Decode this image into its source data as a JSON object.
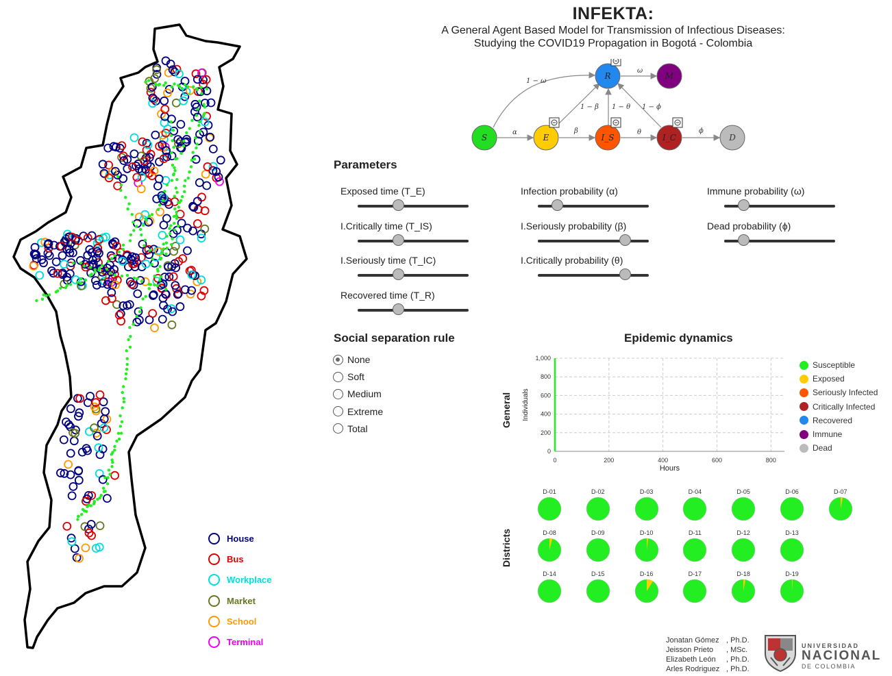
{
  "header": {
    "title": "INFEKTA:",
    "subtitle_line1": "A General Agent Based Model for Transmission of Infectious Diseases:",
    "subtitle_line2": "Studying the COVID19 Propagation in Bogotá - Colombia"
  },
  "model_diagram": {
    "nodes": [
      {
        "label": "S",
        "color": "#22dd22"
      },
      {
        "label": "E",
        "color": "#ffcc00"
      },
      {
        "label": "I_S",
        "color": "#ff5500"
      },
      {
        "label": "I_C",
        "color": "#b02222"
      },
      {
        "label": "D",
        "color": "#bbbbbb"
      },
      {
        "label": "R",
        "color": "#2288ee"
      },
      {
        "label": "M",
        "color": "#800080"
      }
    ],
    "edge_labels": {
      "alpha": "α",
      "beta": "β",
      "theta": "θ",
      "phi": "ϕ",
      "omega": "ω",
      "one_minus_omega": "1 − ω",
      "one_minus_beta": "1 − β",
      "one_minus_theta": "1 − θ",
      "one_minus_phi": "1 − ϕ"
    },
    "timer_icon": "clock-icon"
  },
  "parameters": {
    "title": "Parameters",
    "items": [
      {
        "label": "Exposed time (T_E)",
        "value": 0.37
      },
      {
        "label": "I.Critically time (T_IS)",
        "value": 0.37
      },
      {
        "label": "I.Seriously time (T_IC)",
        "value": 0.37
      },
      {
        "label": "Recovered time (T_R)",
        "value": 0.37
      },
      {
        "label": "Infection probability (α)",
        "value": 0.18
      },
      {
        "label": "I.Seriously probability (β)",
        "value": 0.79
      },
      {
        "label": "I.Critically probability (θ)",
        "value": 0.79
      },
      {
        "label": "Immune probability (ω)",
        "value": 0.18
      },
      {
        "label": "Dead probability (ϕ)",
        "value": 0.18
      }
    ]
  },
  "social": {
    "title": "Social separation rule",
    "options": [
      "None",
      "Soft",
      "Medium",
      "Extreme",
      "Total"
    ],
    "selected": "None"
  },
  "dynamics": {
    "title": "Epidemic dynamics",
    "general_label": "General",
    "districts_label": "Districts"
  },
  "chart_data": {
    "type": "line",
    "title": "",
    "xlabel": "Hours",
    "ylabel": "Individuals",
    "xlim": [
      0,
      850
    ],
    "ylim": [
      0,
      1000
    ],
    "x_ticks": [
      "0",
      "200",
      "400",
      "600",
      "800"
    ],
    "y_ticks": [
      "0",
      "200",
      "400",
      "600",
      "800",
      "1,000"
    ],
    "grid": true,
    "legend_position": "right",
    "series": [
      {
        "name": "Susceptible",
        "color": "#22ee22",
        "x": [
          0,
          0
        ],
        "y": [
          0,
          1000
        ]
      },
      {
        "name": "Exposed",
        "color": "#ffcc00",
        "x": [],
        "y": []
      },
      {
        "name": "Seriously Infected",
        "color": "#ff5500",
        "x": [],
        "y": []
      },
      {
        "name": "Critically Infected",
        "color": "#b02222",
        "x": [],
        "y": []
      },
      {
        "name": "Recovered",
        "color": "#2288ee",
        "x": [],
        "y": []
      },
      {
        "name": "Immune",
        "color": "#800080",
        "x": [],
        "y": []
      },
      {
        "name": "Dead",
        "color": "#bbbbbb",
        "x": [],
        "y": []
      }
    ]
  },
  "districts": [
    {
      "name": "D-01",
      "exposed": 0.0
    },
    {
      "name": "D-02",
      "exposed": 0.0
    },
    {
      "name": "D-03",
      "exposed": 0.0
    },
    {
      "name": "D-04",
      "exposed": 0.0
    },
    {
      "name": "D-05",
      "exposed": 0.0
    },
    {
      "name": "D-06",
      "exposed": 0.0
    },
    {
      "name": "D-07",
      "exposed": 0.03
    },
    {
      "name": "D-08",
      "exposed": 0.04
    },
    {
      "name": "D-09",
      "exposed": 0.0
    },
    {
      "name": "D-10",
      "exposed": 0.02
    },
    {
      "name": "D-11",
      "exposed": 0.0
    },
    {
      "name": "D-12",
      "exposed": 0.0
    },
    {
      "name": "D-13",
      "exposed": 0.0
    },
    {
      "name": "D-14",
      "exposed": 0.0
    },
    {
      "name": "D-15",
      "exposed": 0.0
    },
    {
      "name": "D-16",
      "exposed": 0.09
    },
    {
      "name": "D-17",
      "exposed": 0.0
    },
    {
      "name": "D-18",
      "exposed": 0.03
    },
    {
      "name": "D-19",
      "exposed": 0.01
    }
  ],
  "map_legend": [
    {
      "label": "House",
      "color": "#000080"
    },
    {
      "label": "Bus",
      "color": "#dd0000"
    },
    {
      "label": "Workplace",
      "color": "#00dddd"
    },
    {
      "label": "Market",
      "color": "#667722"
    },
    {
      "label": "School",
      "color": "#ff9900"
    },
    {
      "label": "Terminal",
      "color": "#ee00ee"
    }
  ],
  "credits": [
    {
      "name": "Jonatan Gómez",
      "degree": ", Ph.D."
    },
    {
      "name": "Jeisson Prieto",
      "degree": ", MSc."
    },
    {
      "name": "Elizabeth León",
      "degree": ", Ph.D."
    },
    {
      "name": "Arles Rodriguez",
      "degree": ", Ph.D."
    }
  ],
  "university": {
    "line1": "UNIVERSIDAD",
    "line2": "NACIONAL",
    "line3": "DE COLOMBIA"
  }
}
